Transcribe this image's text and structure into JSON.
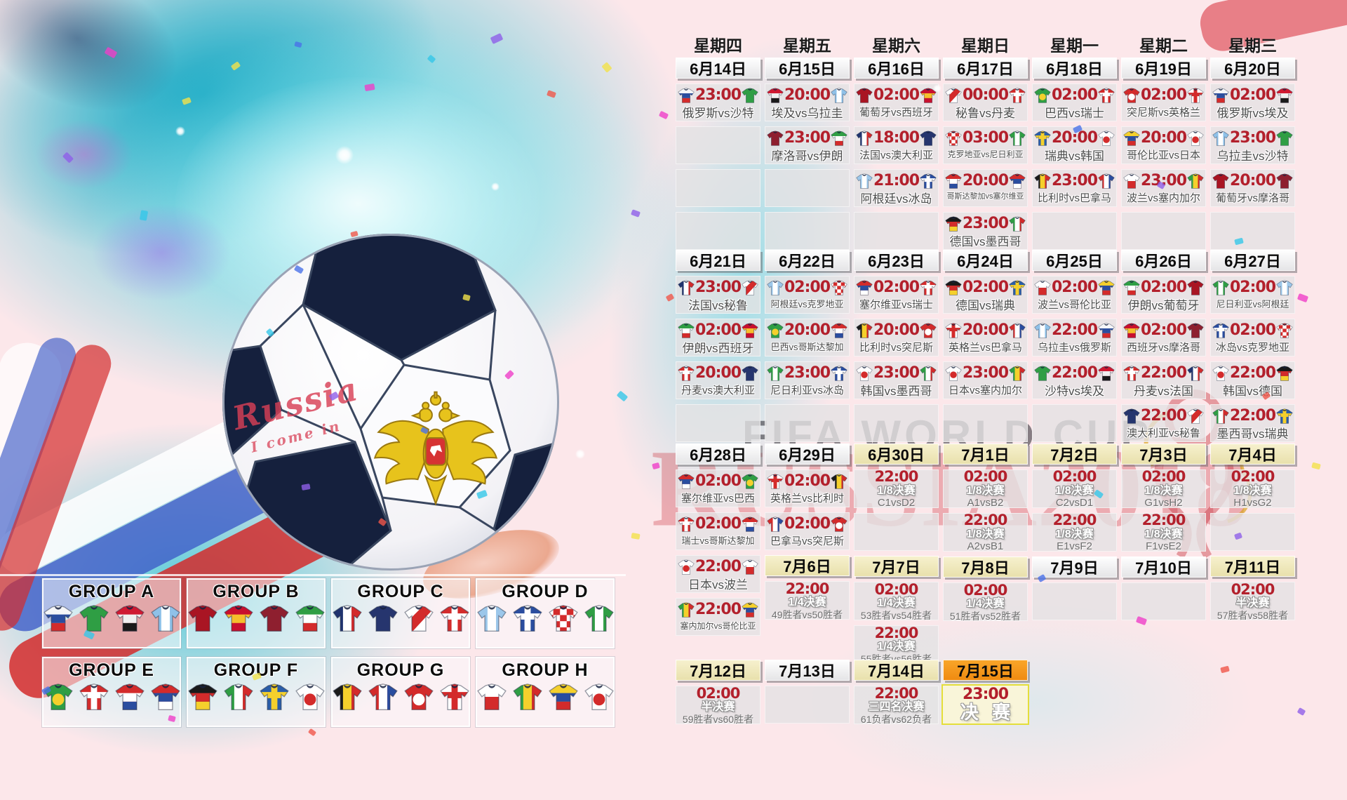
{
  "meta": {
    "title_watermark": "FIFA WORLD CUP",
    "russia_watermark": "RUSSIA2018",
    "ball_script_line1": "Russia",
    "ball_script_line2": "I come in"
  },
  "colors": {
    "page_background": "#fce7ea",
    "time_red": "#b3202c",
    "date_plain": "#ffffff",
    "date_cream": "#f3edc6",
    "date_orange": "#f5941e",
    "cell_gray": "#e4e2e3",
    "teal_splash": "#2ec3d6"
  },
  "weekdays": [
    "星期四",
    "星期五",
    "星期六",
    "星期日",
    "星期一",
    "星期二",
    "星期三"
  ],
  "groups": [
    {
      "title": "GROUP A",
      "teams": [
        "俄罗斯",
        "沙特",
        "埃及",
        "乌拉圭"
      ]
    },
    {
      "title": "GROUP B",
      "teams": [
        "葡萄牙",
        "西班牙",
        "摩洛哥",
        "伊朗"
      ]
    },
    {
      "title": "GROUP C",
      "teams": [
        "法国",
        "澳大利亚",
        "秘鲁",
        "丹麦"
      ]
    },
    {
      "title": "GROUP D",
      "teams": [
        "阿根廷",
        "冰岛",
        "克罗地亚",
        "尼日利亚"
      ]
    },
    {
      "title": "GROUP E",
      "teams": [
        "巴西",
        "瑞士",
        "哥斯达黎加",
        "塞尔维亚"
      ]
    },
    {
      "title": "GROUP F",
      "teams": [
        "德国",
        "墨西哥",
        "瑞典",
        "韩国"
      ]
    },
    {
      "title": "GROUP G",
      "teams": [
        "比利时",
        "巴拿马",
        "突尼斯",
        "英格兰"
      ]
    },
    {
      "title": "GROUP H",
      "teams": [
        "波兰",
        "塞内加尔",
        "哥伦比亚",
        "日本"
      ]
    }
  ],
  "jerseys": {
    "俄罗斯": {
      "t": "h",
      "c": [
        "#f5f6f8",
        "#2a4d9f",
        "#d32b2b"
      ]
    },
    "沙特": {
      "t": "s",
      "c": [
        "#2f9e44"
      ]
    },
    "埃及": {
      "t": "h",
      "c": [
        "#cf1931",
        "#f0f0f0",
        "#1a1a1a"
      ]
    },
    "乌拉圭": {
      "t": "v",
      "c": [
        "#8fc1e8",
        "#ffffff",
        "#8fc1e8"
      ]
    },
    "葡萄牙": {
      "t": "s",
      "c": [
        "#a91523"
      ]
    },
    "西班牙": {
      "t": "h",
      "c": [
        "#c8102e",
        "#f5bf2c",
        "#c8102e"
      ]
    },
    "摩洛哥": {
      "t": "s",
      "c": [
        "#8e1f2f"
      ]
    },
    "伊朗": {
      "t": "h",
      "c": [
        "#2f9e44",
        "#ffffff",
        "#d32b2b"
      ]
    },
    "法国": {
      "t": "v",
      "c": [
        "#20336e",
        "#ffffff",
        "#d32b2b"
      ]
    },
    "澳大利亚": {
      "t": "s",
      "c": [
        "#26356e"
      ]
    },
    "秘鲁": {
      "t": "a",
      "c": [
        "#ffffff",
        "#d32b2b"
      ]
    },
    "丹麦": {
      "t": "c",
      "c": [
        "#d32b2b",
        "#ffffff"
      ]
    },
    "阿根廷": {
      "t": "v",
      "c": [
        "#9cc7ea",
        "#ffffff",
        "#9cc7ea"
      ]
    },
    "冰岛": {
      "t": "c",
      "c": [
        "#2a4d9f",
        "#ffffff"
      ]
    },
    "克罗地亚": {
      "t": "k",
      "c": [
        "#ffffff",
        "#d32b2b"
      ]
    },
    "尼日利亚": {
      "t": "v",
      "c": [
        "#2f9e44",
        "#ffffff",
        "#2f9e44"
      ]
    },
    "巴西": {
      "t": "o",
      "c": [
        "#2f9e44",
        "#f5d02c"
      ]
    },
    "瑞士": {
      "t": "c",
      "c": [
        "#d32b2b",
        "#ffffff"
      ]
    },
    "哥斯达黎加": {
      "t": "h",
      "c": [
        "#d32b2b",
        "#ffffff",
        "#2a4d9f"
      ]
    },
    "塞尔维亚": {
      "t": "h",
      "c": [
        "#d32b2b",
        "#2a4d9f",
        "#ffffff"
      ]
    },
    "德国": {
      "t": "h",
      "c": [
        "#1a1a1a",
        "#d32b2b",
        "#f5d02c"
      ]
    },
    "墨西哥": {
      "t": "v",
      "c": [
        "#2f9e44",
        "#ffffff",
        "#d32b2b"
      ]
    },
    "瑞典": {
      "t": "c",
      "c": [
        "#2a5da8",
        "#f5d02c"
      ]
    },
    "韩国": {
      "t": "o",
      "c": [
        "#ffffff",
        "#d32b2b"
      ]
    },
    "比利时": {
      "t": "v",
      "c": [
        "#1a1a1a",
        "#f5d02c",
        "#d32b2b"
      ]
    },
    "巴拿马": {
      "t": "v",
      "c": [
        "#d32b2b",
        "#ffffff",
        "#2a4d9f"
      ]
    },
    "突尼斯": {
      "t": "o",
      "c": [
        "#d32b2b",
        "#ffffff"
      ]
    },
    "英格兰": {
      "t": "c",
      "c": [
        "#ffffff",
        "#d32b2b"
      ]
    },
    "波兰": {
      "t": "h",
      "c": [
        "#ffffff",
        "#d32b2b"
      ]
    },
    "塞内加尔": {
      "t": "v",
      "c": [
        "#2f9e44",
        "#f5d02c",
        "#d32b2b"
      ]
    },
    "哥伦比亚": {
      "t": "h",
      "c": [
        "#f5d02c",
        "#2a4d9f",
        "#d32b2b"
      ]
    },
    "日本": {
      "t": "o",
      "c": [
        "#ffffff",
        "#d32b2b"
      ]
    }
  },
  "sections": [
    {
      "cols": [
        {
          "date": "6月14日",
          "tone": "plain",
          "slots": [
            {
              "k": "m",
              "time": "23:00",
              "home": "俄罗斯",
              "away": "沙特",
              "label": "俄罗斯vs沙特"
            },
            {
              "k": "e"
            },
            {
              "k": "e"
            },
            {
              "k": "e"
            }
          ]
        },
        {
          "date": "6月15日",
          "tone": "plain",
          "slots": [
            {
              "k": "m",
              "time": "20:00",
              "home": "埃及",
              "away": "乌拉圭",
              "label": "埃及vs乌拉圭"
            },
            {
              "k": "m",
              "time": "23:00",
              "home": "摩洛哥",
              "away": "伊朗",
              "label": "摩洛哥vs伊朗"
            },
            {
              "k": "e"
            },
            {
              "k": "e"
            }
          ]
        },
        {
          "date": "6月16日",
          "tone": "plain",
          "slots": [
            {
              "k": "m",
              "time": "02:00",
              "home": "葡萄牙",
              "away": "西班牙",
              "label": "葡萄牙vs西班牙"
            },
            {
              "k": "m",
              "time": "18:00",
              "home": "法国",
              "away": "澳大利亚",
              "label": "法国vs澳大利亚"
            },
            {
              "k": "m",
              "time": "21:00",
              "home": "阿根廷",
              "away": "冰岛",
              "label": "阿根廷vs冰岛"
            },
            {
              "k": "e"
            }
          ]
        },
        {
          "date": "6月17日",
          "tone": "plain",
          "slots": [
            {
              "k": "m",
              "time": "00:00",
              "home": "秘鲁",
              "away": "丹麦",
              "label": "秘鲁vs丹麦"
            },
            {
              "k": "m",
              "time": "03:00",
              "home": "克罗地亚",
              "away": "尼日利亚",
              "label": "克罗地亚vs尼日利亚"
            },
            {
              "k": "m",
              "time": "20:00",
              "home": "哥斯达黎加",
              "away": "塞尔维亚",
              "label": "哥斯达黎加vs塞尔维亚"
            },
            {
              "k": "m",
              "time": "23:00",
              "home": "德国",
              "away": "墨西哥",
              "label": "德国vs墨西哥"
            }
          ]
        },
        {
          "date": "6月18日",
          "tone": "plain",
          "slots": [
            {
              "k": "m",
              "time": "02:00",
              "home": "巴西",
              "away": "瑞士",
              "label": "巴西vs瑞士"
            },
            {
              "k": "m",
              "time": "20:00",
              "home": "瑞典",
              "away": "韩国",
              "label": "瑞典vs韩国"
            },
            {
              "k": "m",
              "time": "23:00",
              "home": "比利时",
              "away": "巴拿马",
              "label": "比利时vs巴拿马"
            },
            {
              "k": "e"
            }
          ]
        },
        {
          "date": "6月19日",
          "tone": "plain",
          "slots": [
            {
              "k": "m",
              "time": "02:00",
              "home": "突尼斯",
              "away": "英格兰",
              "label": "突尼斯vs英格兰"
            },
            {
              "k": "m",
              "time": "20:00",
              "home": "哥伦比亚",
              "away": "日本",
              "label": "哥伦比亚vs日本"
            },
            {
              "k": "m",
              "time": "23:00",
              "home": "波兰",
              "away": "塞内加尔",
              "label": "波兰vs塞内加尔"
            },
            {
              "k": "e"
            }
          ]
        },
        {
          "date": "6月20日",
          "tone": "plain",
          "slots": [
            {
              "k": "m",
              "time": "02:00",
              "home": "俄罗斯",
              "away": "埃及",
              "label": "俄罗斯vs埃及"
            },
            {
              "k": "m",
              "time": "23:00",
              "home": "乌拉圭",
              "away": "沙特",
              "label": "乌拉圭vs沙特"
            },
            {
              "k": "m",
              "time": "20:00",
              "home": "葡萄牙",
              "away": "摩洛哥",
              "label": "葡萄牙vs摩洛哥"
            },
            {
              "k": "e"
            }
          ]
        }
      ]
    },
    {
      "cols": [
        {
          "date": "6月21日",
          "tone": "plain",
          "slots": [
            {
              "k": "m",
              "time": "23:00",
              "home": "法国",
              "away": "秘鲁",
              "label": "法国vs秘鲁"
            },
            {
              "k": "m",
              "time": "02:00",
              "home": "伊朗",
              "away": "西班牙",
              "label": "伊朗vs西班牙"
            },
            {
              "k": "m",
              "time": "20:00",
              "home": "丹麦",
              "away": "澳大利亚",
              "label": "丹麦vs澳大利亚"
            },
            {
              "k": "e"
            }
          ]
        },
        {
          "date": "6月22日",
          "tone": "plain",
          "slots": [
            {
              "k": "m",
              "time": "02:00",
              "home": "阿根廷",
              "away": "克罗地亚",
              "label": "阿根廷vs克罗地亚"
            },
            {
              "k": "m",
              "time": "20:00",
              "home": "巴西",
              "away": "哥斯达黎加",
              "label": "巴西vs哥斯达黎加"
            },
            {
              "k": "m",
              "time": "23:00",
              "home": "尼日利亚",
              "away": "冰岛",
              "label": "尼日利亚vs冰岛"
            },
            {
              "k": "e"
            }
          ]
        },
        {
          "date": "6月23日",
          "tone": "plain",
          "slots": [
            {
              "k": "m",
              "time": "02:00",
              "home": "塞尔维亚",
              "away": "瑞士",
              "label": "塞尔维亚vs瑞士"
            },
            {
              "k": "m",
              "time": "20:00",
              "home": "比利时",
              "away": "突尼斯",
              "label": "比利时vs突尼斯"
            },
            {
              "k": "m",
              "time": "23:00",
              "home": "韩国",
              "away": "墨西哥",
              "label": "韩国vs墨西哥"
            },
            {
              "k": "e"
            }
          ]
        },
        {
          "date": "6月24日",
          "tone": "plain",
          "slots": [
            {
              "k": "m",
              "time": "02:00",
              "home": "德国",
              "away": "瑞典",
              "label": "德国vs瑞典"
            },
            {
              "k": "m",
              "time": "20:00",
              "home": "英格兰",
              "away": "巴拿马",
              "label": "英格兰vs巴拿马"
            },
            {
              "k": "m",
              "time": "23:00",
              "home": "日本",
              "away": "塞内加尔",
              "label": "日本vs塞内加尔"
            },
            {
              "k": "e"
            }
          ]
        },
        {
          "date": "6月25日",
          "tone": "plain",
          "slots": [
            {
              "k": "m",
              "time": "02:00",
              "home": "波兰",
              "away": "哥伦比亚",
              "label": "波兰vs哥伦比亚"
            },
            {
              "k": "m",
              "time": "22:00",
              "home": "乌拉圭",
              "away": "俄罗斯",
              "label": "乌拉圭vs俄罗斯"
            },
            {
              "k": "m",
              "time": "22:00",
              "home": "沙特",
              "away": "埃及",
              "label": "沙特vs埃及"
            },
            {
              "k": "e"
            }
          ]
        },
        {
          "date": "6月26日",
          "tone": "plain",
          "slots": [
            {
              "k": "m",
              "time": "02:00",
              "home": "伊朗",
              "away": "葡萄牙",
              "label": "伊朗vs葡萄牙"
            },
            {
              "k": "m",
              "time": "02:00",
              "home": "西班牙",
              "away": "摩洛哥",
              "label": "西班牙vs摩洛哥"
            },
            {
              "k": "m",
              "time": "22:00",
              "home": "丹麦",
              "away": "法国",
              "label": "丹麦vs法国"
            },
            {
              "k": "m",
              "time": "22:00",
              "home": "澳大利亚",
              "away": "秘鲁",
              "label": "澳大利亚vs秘鲁"
            }
          ]
        },
        {
          "date": "6月27日",
          "tone": "plain",
          "slots": [
            {
              "k": "m",
              "time": "02:00",
              "home": "尼日利亚",
              "away": "阿根廷",
              "label": "尼日利亚vs阿根廷"
            },
            {
              "k": "m",
              "time": "02:00",
              "home": "冰岛",
              "away": "克罗地亚",
              "label": "冰岛vs克罗地亚"
            },
            {
              "k": "m",
              "time": "22:00",
              "home": "韩国",
              "away": "德国",
              "label": "韩国vs德国"
            },
            {
              "k": "m",
              "time": "22:00",
              "home": "墨西哥",
              "away": "瑞典",
              "label": "墨西哥vs瑞典"
            }
          ]
        }
      ]
    },
    {
      "cols": [
        {
          "date": "6月28日",
          "tone": "plain",
          "slots": [
            {
              "k": "m",
              "time": "02:00",
              "home": "塞尔维亚",
              "away": "巴西",
              "label": "塞尔维亚vs巴西"
            },
            {
              "k": "m",
              "time": "02:00",
              "home": "瑞士",
              "away": "哥斯达黎加",
              "label": "瑞士vs哥斯达黎加"
            },
            {
              "k": "m",
              "time": "22:00",
              "home": "日本",
              "away": "波兰",
              "label": "日本vs波兰"
            },
            {
              "k": "m",
              "time": "22:00",
              "home": "塞内加尔",
              "away": "哥伦比亚",
              "label": "塞内加尔vs哥伦比亚"
            }
          ]
        },
        {
          "date": "6月29日",
          "tone": "plain",
          "slots": [
            {
              "k": "m",
              "time": "02:00",
              "home": "英格兰",
              "away": "比利时",
              "label": "英格兰vs比利时"
            },
            {
              "k": "m",
              "time": "02:00",
              "home": "巴拿马",
              "away": "突尼斯",
              "label": "巴拿马vs突尼斯"
            },
            {
              "k": "d",
              "text": "7月6日",
              "tone": "cream"
            },
            {
              "k": "o",
              "time": "22:00",
              "round": "1/4决赛",
              "pair": "49胜者vs50胜者"
            }
          ]
        },
        {
          "date": "6月30日",
          "tone": "cream",
          "slots": [
            {
              "k": "o",
              "time": "22:00",
              "round": "1/8决赛",
              "pair": "C1vsD2"
            },
            {
              "k": "e"
            },
            {
              "k": "d",
              "text": "7月7日",
              "tone": "cream"
            },
            {
              "k": "o",
              "time": "02:00",
              "round": "1/4决赛",
              "pair": "53胜者vs54胜者"
            },
            {
              "k": "o",
              "time": "22:00",
              "round": "1/4决赛",
              "pair": "55胜者vs56胜者"
            }
          ]
        },
        {
          "date": "7月1日",
          "tone": "cream",
          "slots": [
            {
              "k": "o",
              "time": "02:00",
              "round": "1/8决赛",
              "pair": "A1vsB2"
            },
            {
              "k": "o",
              "time": "22:00",
              "round": "1/8决赛",
              "pair": "A2vsB1"
            },
            {
              "k": "d",
              "text": "7月8日",
              "tone": "cream"
            },
            {
              "k": "o",
              "time": "02:00",
              "round": "1/4决赛",
              "pair": "51胜者vs52胜者"
            }
          ]
        },
        {
          "date": "7月2日",
          "tone": "cream",
          "slots": [
            {
              "k": "o",
              "time": "02:00",
              "round": "1/8决赛",
              "pair": "C2vsD1"
            },
            {
              "k": "o",
              "time": "22:00",
              "round": "1/8决赛",
              "pair": "E1vsF2"
            },
            {
              "k": "d",
              "text": "7月9日",
              "tone": "plain"
            },
            {
              "k": "e"
            }
          ]
        },
        {
          "date": "7月3日",
          "tone": "cream",
          "slots": [
            {
              "k": "o",
              "time": "02:00",
              "round": "1/8决赛",
              "pair": "G1vsH2"
            },
            {
              "k": "o",
              "time": "22:00",
              "round": "1/8决赛",
              "pair": "F1vsE2"
            },
            {
              "k": "d",
              "text": "7月10日",
              "tone": "plain"
            },
            {
              "k": "e"
            }
          ]
        },
        {
          "date": "7月4日",
          "tone": "cream",
          "slots": [
            {
              "k": "o",
              "time": "02:00",
              "round": "1/8决赛",
              "pair": "H1vsG2"
            },
            {
              "k": "e"
            },
            {
              "k": "d",
              "text": "7月11日",
              "tone": "cream"
            },
            {
              "k": "o",
              "time": "02:00",
              "round": "半决赛",
              "pair": "57胜者vs58胜者"
            }
          ]
        }
      ]
    },
    {
      "cols": [
        {
          "date": "7月12日",
          "tone": "cream",
          "slots": [
            {
              "k": "o",
              "time": "02:00",
              "round": "半决赛",
              "pair": "59胜者vs60胜者"
            }
          ]
        },
        {
          "date": "7月13日",
          "tone": "plain",
          "slots": [
            {
              "k": "e"
            }
          ]
        },
        {
          "date": "7月14日",
          "tone": "cream",
          "slots": [
            {
              "k": "o",
              "time": "22:00",
              "round": "三四名决赛",
              "pair": "61负者vs62负者"
            }
          ]
        },
        {
          "date": "7月15日",
          "tone": "orange",
          "slots": [
            {
              "k": "f",
              "time": "23:00",
              "label": "决 赛"
            }
          ]
        }
      ]
    }
  ]
}
